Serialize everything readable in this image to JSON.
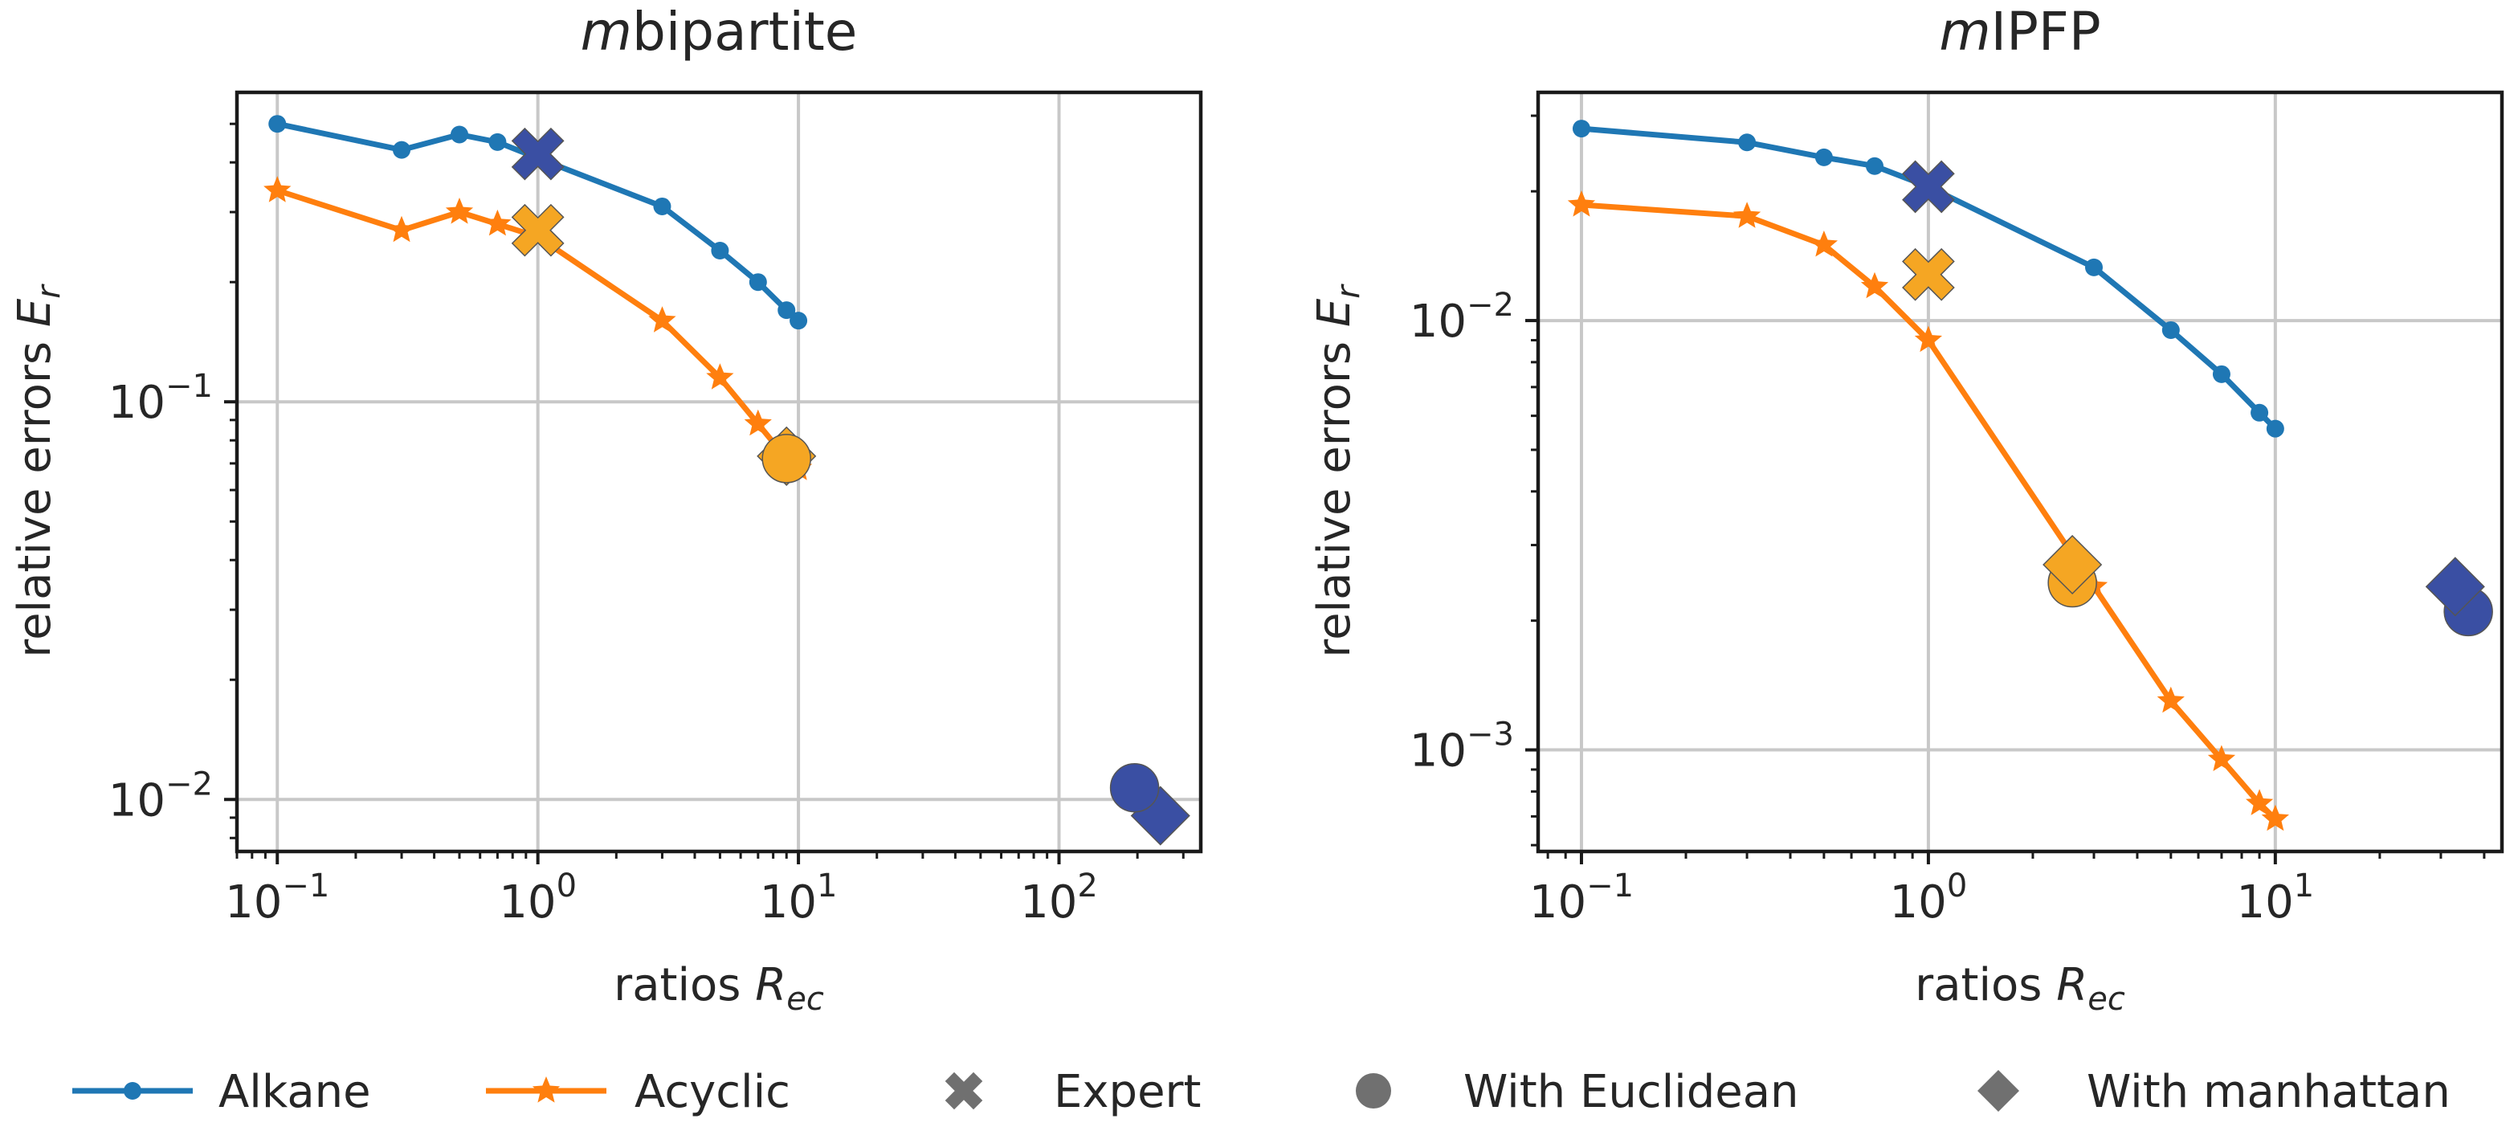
{
  "chart_data": [
    {
      "type": "line",
      "id": "bipartite",
      "title_prefix": "m",
      "title": "bipartite",
      "xlabel": "ratios",
      "xlabel_var": "R",
      "xlabel_sub": "ec",
      "ylabel": "relative errors",
      "ylabel_var": "E",
      "ylabel_sub": "r",
      "xscale": "log",
      "yscale": "log",
      "xlim": [
        0.07,
        350
      ],
      "ylim": [
        0.0074,
        0.6
      ],
      "xticks": [
        {
          "value": 0.1,
          "base": "10",
          "exp": "−1"
        },
        {
          "value": 1,
          "base": "10",
          "exp": "0"
        },
        {
          "value": 10,
          "base": "10",
          "exp": "1"
        },
        {
          "value": 100,
          "base": "10",
          "exp": "2"
        }
      ],
      "yticks": [
        {
          "value": 0.01,
          "base": "10",
          "exp": "−2"
        },
        {
          "value": 0.1,
          "base": "10",
          "exp": "−1"
        }
      ],
      "grid": true,
      "series": [
        {
          "name": "Alkane",
          "color": "#1f77b4",
          "marker": "dot",
          "x": [
            0.1,
            0.3,
            0.5,
            0.7,
            1,
            3,
            5,
            7,
            9,
            10
          ],
          "y": [
            0.5,
            0.43,
            0.47,
            0.45,
            0.41,
            0.31,
            0.24,
            0.2,
            0.17,
            0.16
          ]
        },
        {
          "name": "Acyclic",
          "color": "#ff7f0e",
          "marker": "star",
          "x": [
            0.1,
            0.3,
            0.5,
            0.7,
            1,
            3,
            5,
            7,
            9,
            10
          ],
          "y": [
            0.34,
            0.27,
            0.3,
            0.28,
            0.26,
            0.16,
            0.115,
            0.088,
            0.072,
            0.068
          ]
        }
      ],
      "markers": [
        {
          "type": "diamond",
          "x": 9,
          "y": 0.073,
          "color": "#f5a623"
        },
        {
          "type": "circle",
          "x": 9,
          "y": 0.072,
          "color": "#f5a623"
        },
        {
          "type": "cross",
          "x": 1,
          "y": 0.42,
          "color": "#3a4fa3"
        },
        {
          "type": "cross",
          "x": 1,
          "y": 0.27,
          "color": "#f5a623"
        },
        {
          "type": "diamond",
          "x": 245,
          "y": 0.0091,
          "color": "#3a4fa3"
        },
        {
          "type": "circle",
          "x": 195,
          "y": 0.0107,
          "color": "#3a4fa3"
        }
      ]
    },
    {
      "type": "line",
      "id": "ipfp",
      "title_prefix": "m",
      "title": "IPFP",
      "xlabel": "ratios",
      "xlabel_var": "R",
      "xlabel_sub": "ec",
      "ylabel": "relative errors",
      "ylabel_var": "E",
      "ylabel_sub": "r",
      "xscale": "log",
      "yscale": "log",
      "xlim": [
        0.075,
        45
      ],
      "ylim": [
        0.00058,
        0.034
      ],
      "xticks": [
        {
          "value": 0.1,
          "base": "10",
          "exp": "−1"
        },
        {
          "value": 1,
          "base": "10",
          "exp": "0"
        },
        {
          "value": 10,
          "base": "10",
          "exp": "1"
        }
      ],
      "yticks": [
        {
          "value": 0.001,
          "base": "10",
          "exp": "−3"
        },
        {
          "value": 0.01,
          "base": "10",
          "exp": "−2"
        }
      ],
      "grid": true,
      "series": [
        {
          "name": "Alkane",
          "color": "#1f77b4",
          "marker": "dot",
          "x": [
            0.1,
            0.3,
            0.5,
            0.7,
            1,
            3,
            5,
            7,
            9,
            10
          ],
          "y": [
            0.028,
            0.026,
            0.024,
            0.0229,
            0.0205,
            0.0133,
            0.0095,
            0.0075,
            0.0061,
            0.0056
          ]
        },
        {
          "name": "Acyclic",
          "color": "#ff7f0e",
          "marker": "star",
          "x": [
            0.1,
            0.3,
            0.5,
            0.7,
            1,
            3,
            5,
            7,
            9,
            10
          ],
          "y": [
            0.0186,
            0.0175,
            0.015,
            0.012,
            0.009,
            0.0024,
            0.0013,
            0.00095,
            0.00075,
            0.00069
          ]
        }
      ],
      "markers": [
        {
          "type": "cross",
          "x": 1,
          "y": 0.0205,
          "color": "#3a4fa3"
        },
        {
          "type": "cross",
          "x": 1,
          "y": 0.0128,
          "color": "#f5a623"
        },
        {
          "type": "circle",
          "x": 2.6,
          "y": 0.00245,
          "color": "#f5a623"
        },
        {
          "type": "diamond",
          "x": 2.6,
          "y": 0.0027,
          "color": "#f5a623"
        },
        {
          "type": "circle",
          "x": 36,
          "y": 0.0021,
          "color": "#3a4fa3"
        },
        {
          "type": "diamond",
          "x": 33,
          "y": 0.0024,
          "color": "#3a4fa3"
        }
      ]
    }
  ],
  "legend": {
    "position": "bottom",
    "items": [
      {
        "label": "Alkane",
        "kind": "line-dot",
        "color": "#1f77b4"
      },
      {
        "label": "Acyclic",
        "kind": "line-star",
        "color": "#ff7f0e"
      },
      {
        "label": "Expert",
        "kind": "cross",
        "color": "#707070"
      },
      {
        "label": "With Euclidean",
        "kind": "circle",
        "color": "#707070"
      },
      {
        "label": "With manhattan",
        "kind": "diamond",
        "color": "#707070"
      }
    ]
  }
}
